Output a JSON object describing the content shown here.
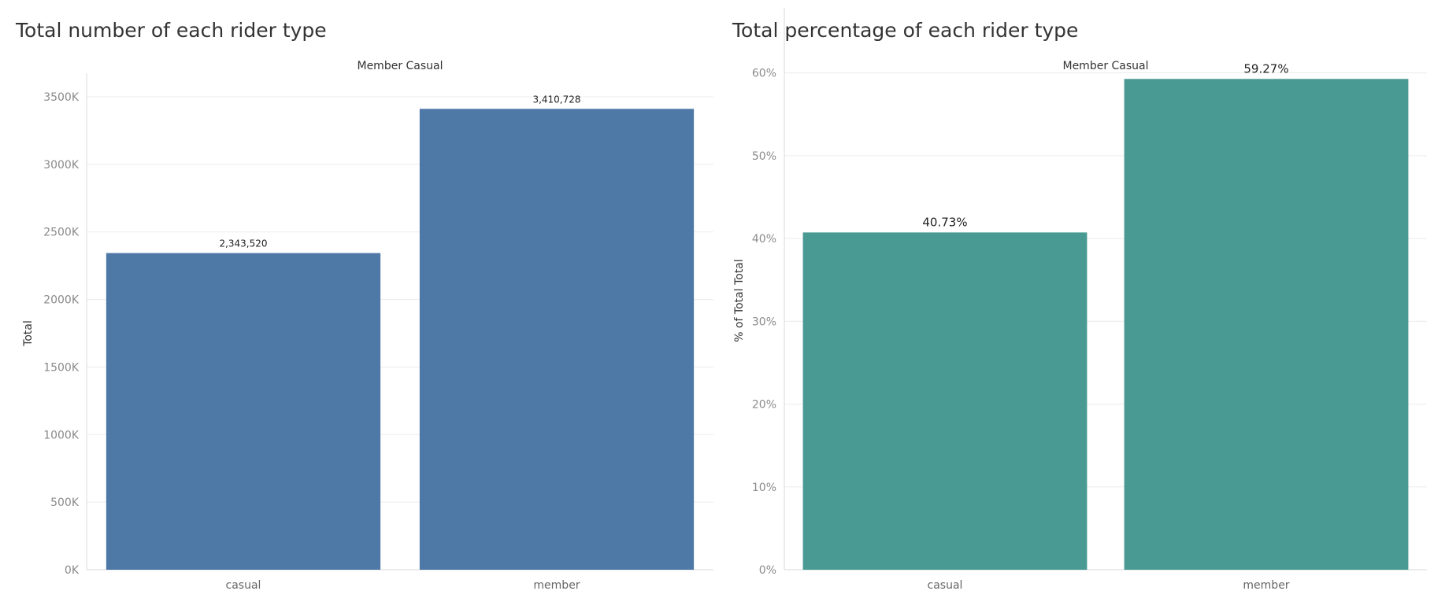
{
  "charts": {
    "left": {
      "title": "Total number of each rider type",
      "colors": {
        "bar": "#4E79A7",
        "grid": "#ececec",
        "axis": "#d9d9d9"
      }
    },
    "right": {
      "title": "Total percentage of each rider type",
      "colors": {
        "bar": "#4A9A94",
        "grid": "#ececec",
        "axis": "#d9d9d9"
      }
    }
  },
  "chart_data": [
    {
      "type": "bar",
      "title": "Total number of each rider type",
      "column_header": "Member Casual",
      "xlabel": "",
      "ylabel": "Total",
      "categories": [
        "casual",
        "member"
      ],
      "values": [
        2343520,
        3410728
      ],
      "data_labels": [
        "2,343,520",
        "3,410,728"
      ],
      "ylim": [
        0,
        3500000
      ],
      "yticks": [
        0,
        500000,
        1000000,
        1500000,
        2000000,
        2500000,
        3000000,
        3500000
      ],
      "ytick_labels": [
        "0K",
        "500K",
        "1000K",
        "1500K",
        "2000K",
        "2500K",
        "3000K",
        "3500K"
      ],
      "grid": true,
      "legend": "none"
    },
    {
      "type": "bar",
      "title": "Total percentage of each rider type",
      "column_header": "Member Casual",
      "xlabel": "",
      "ylabel": "% of Total Total",
      "categories": [
        "casual",
        "member"
      ],
      "values": [
        40.73,
        59.27
      ],
      "data_labels": [
        "40.73%",
        "59.27%"
      ],
      "ylim": [
        0,
        65
      ],
      "yticks": [
        0,
        10,
        20,
        30,
        40,
        50,
        60
      ],
      "ytick_labels": [
        "0%",
        "10%",
        "20%",
        "30%",
        "40%",
        "50%",
        "60%"
      ],
      "grid": true,
      "legend": "none"
    }
  ]
}
